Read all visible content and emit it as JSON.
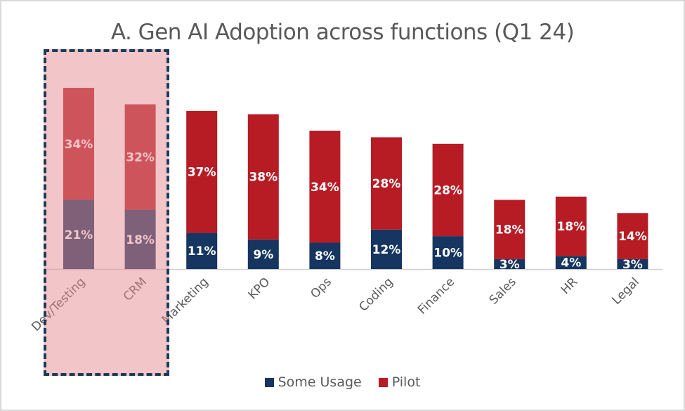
{
  "chart_data": {
    "type": "bar",
    "stacked": true,
    "title": "A. Gen AI Adoption across functions (Q1 24)",
    "xlabel": "",
    "ylabel": "",
    "categories": [
      "Dev/Testing",
      "CRM",
      "Marketing",
      "KPO",
      "Ops",
      "Coding",
      "Finance",
      "Sales",
      "HR",
      "Legal"
    ],
    "series": [
      {
        "name": "Some Usage",
        "color": "#163560",
        "values": [
          21,
          18,
          11,
          9,
          8,
          12,
          10,
          3,
          4,
          3
        ],
        "labels": [
          "21%",
          "18%",
          "11%",
          "9%",
          "8%",
          "12%",
          "10%",
          "3%",
          "4%",
          "3%"
        ]
      },
      {
        "name": "Pilot",
        "color": "#b71c25",
        "values": [
          34,
          32,
          37,
          38,
          34,
          28,
          28,
          18,
          18,
          14
        ],
        "labels": [
          "34%",
          "32%",
          "37%",
          "38%",
          "34%",
          "28%",
          "28%",
          "18%",
          "18%",
          "14%"
        ]
      }
    ],
    "ylim": [
      0,
      60
    ],
    "grid": false,
    "legend": "bottom",
    "highlight": {
      "categories": [
        "Dev/Testing",
        "CRM"
      ],
      "style": "pink-shaded dashed box"
    }
  },
  "colors": {
    "some_usage": "#163560",
    "pilot": "#b71c25",
    "highlight_fill": "#f2c5c7",
    "highlight_border": "#1d3a5a"
  }
}
